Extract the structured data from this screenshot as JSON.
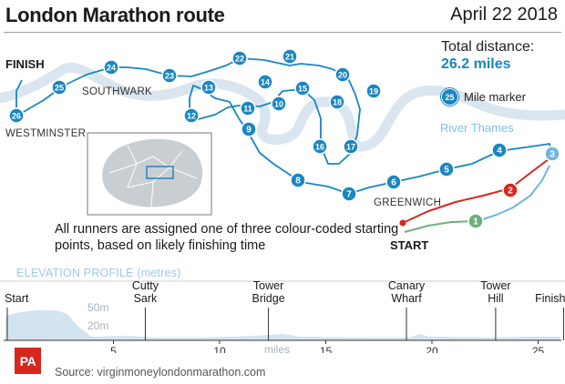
{
  "header": {
    "title": "London Marathon route",
    "date": "April 22 2018"
  },
  "map": {
    "total_distance_label": "Total distance:",
    "total_distance_value": "26.2 miles",
    "legend_marker_number": "25",
    "legend_marker_label": "Mile marker",
    "river_label": "River Thames",
    "place_labels": {
      "finish": "FINISH",
      "southwark": "SOUTHWARK",
      "westminster": "WESTMINSTER",
      "greenwich": "GREENWICH",
      "start": "START"
    },
    "mile_markers": [
      "1",
      "2",
      "3",
      "4",
      "5",
      "6",
      "7",
      "8",
      "9",
      "10",
      "11",
      "12",
      "13",
      "14",
      "15",
      "16",
      "17",
      "18",
      "19",
      "20",
      "21",
      "22",
      "23",
      "24",
      "25",
      "26"
    ],
    "start_colours": {
      "red": "#d7261e",
      "blue": "#6fb6de",
      "green": "#6db07a"
    },
    "route_colour": "#1a86c2",
    "river_colour": "#d9e6ef"
  },
  "note": "All runners are assigned one of three colour-coded starting points, based on likely finishing time",
  "elevation": {
    "title": "ELEVATION PROFILE (metres)",
    "y_labels": [
      "50m",
      "20m"
    ],
    "x_ticks": [
      "5",
      "10",
      "15",
      "20",
      "25"
    ],
    "x_unit": "miles",
    "landmarks": [
      {
        "label": "Start",
        "mile": 0
      },
      {
        "label": "Cutty\nSark",
        "mile": 6.5
      },
      {
        "label": "Tower\nBridge",
        "mile": 12.3
      },
      {
        "label": "Canary\nWharf",
        "mile": 18.8
      },
      {
        "label": "Tower\nHill",
        "mile": 23
      },
      {
        "label": "Finish",
        "mile": 26.2
      }
    ]
  },
  "footer": {
    "logo": "PA",
    "source": "Source: virginmoneylondonmarathon.com"
  }
}
